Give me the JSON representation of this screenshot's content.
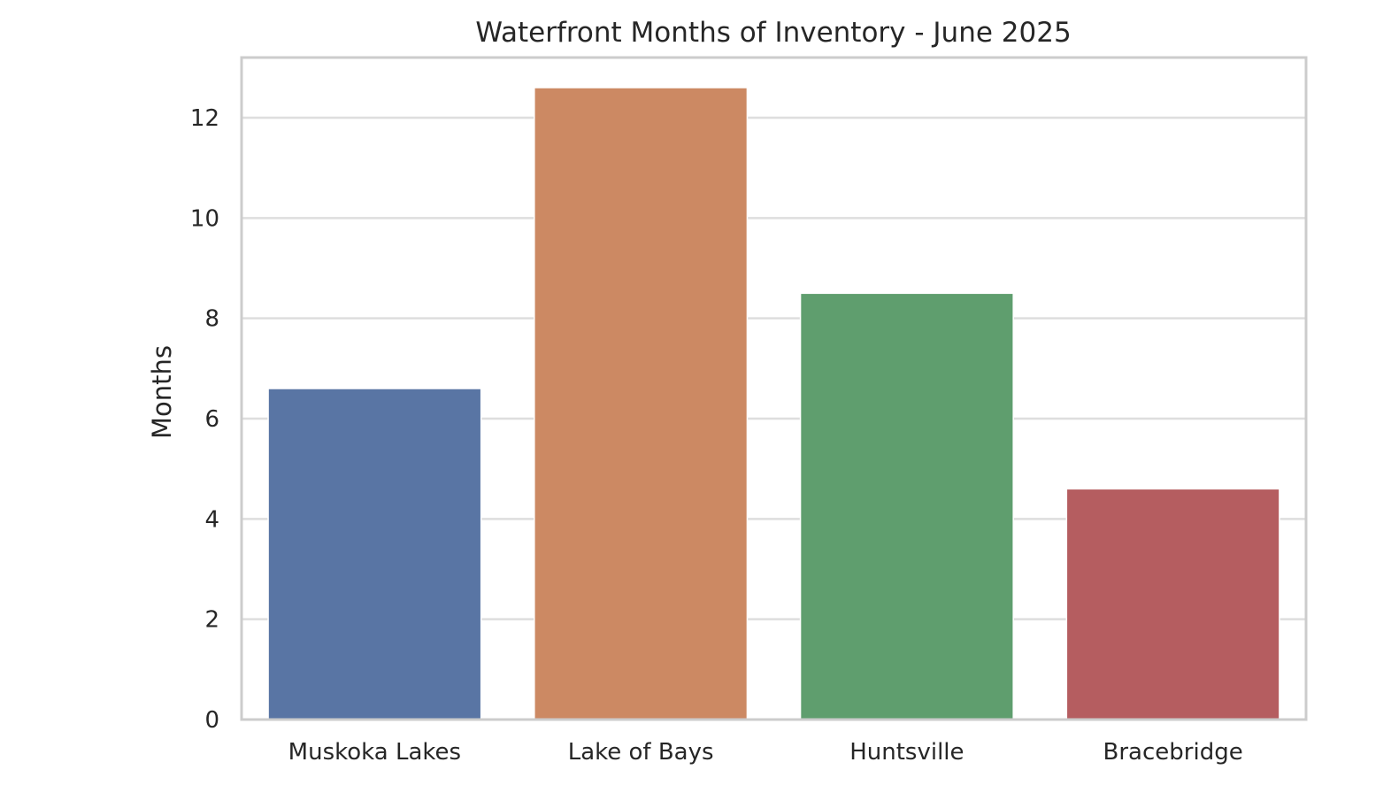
{
  "chart_data": {
    "type": "bar",
    "title": "Waterfront Months of Inventory - June 2025",
    "xlabel": "",
    "ylabel": "Months",
    "categories": [
      "Muskoka Lakes",
      "Lake of Bays",
      "Huntsville",
      "Bracebridge"
    ],
    "values": [
      6.6,
      12.6,
      8.5,
      4.6
    ],
    "colors": [
      "#5975a4",
      "#cc8963",
      "#5f9e6e",
      "#b55d60"
    ],
    "ylim": [
      0,
      13.2
    ],
    "yticks": [
      0,
      2,
      4,
      6,
      8,
      10,
      12
    ],
    "grid": true,
    "legend": "none"
  }
}
